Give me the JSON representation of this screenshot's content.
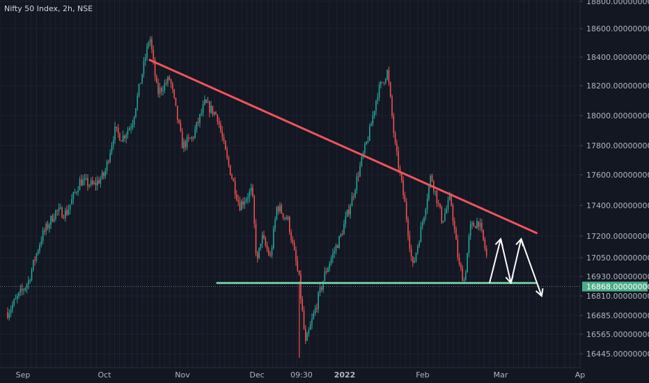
{
  "header": {
    "symbol_label": "Nifty 50 Index, 2h, NSE"
  },
  "colors": {
    "background": "#131722",
    "grid": "#1e2230",
    "up": "#26a69a",
    "down": "#ef5350",
    "axis_text": "#b2b5be",
    "resistance_line": "#f0545c",
    "support_line": "#70c7a0",
    "arrow": "#ffffff",
    "price_label_bg": "#4cae87"
  },
  "chart_data": {
    "type": "candlestick",
    "title": "Nifty 50 Index, 2h, NSE",
    "ylim": [
      16400,
      18800
    ],
    "y_axis_labels": [
      "18800.00000000",
      "18600.00000000",
      "18400.00000000",
      "18200.00000000",
      "18000.00000000",
      "17800.00000000",
      "17600.00000000",
      "17400.00000000",
      "17200.00000000",
      "17050.00000000",
      "16930.00000000",
      "16810.00000000",
      "16685.00000000",
      "16565.00000000",
      "16445.00000000"
    ],
    "x_axis_labels": [
      "Sep",
      "Oct",
      "Nov",
      "Dec",
      "09:30",
      "2022",
      "Feb",
      "Mar",
      "Ap"
    ],
    "current_price_label": "16868.00000000",
    "current_price": 16868,
    "grid": true,
    "price_path": [
      [
        "2021-08-30",
        16705
      ],
      [
        "2021-09-03",
        16900
      ],
      [
        "2021-09-08",
        17200
      ],
      [
        "2021-09-13",
        17360
      ],
      [
        "2021-09-17",
        17350
      ],
      [
        "2021-09-22",
        17560
      ],
      [
        "2021-09-27",
        17530
      ],
      [
        "2021-10-01",
        17600
      ],
      [
        "2021-10-05",
        17900
      ],
      [
        "2021-10-08",
        17850
      ],
      [
        "2021-10-12",
        17950
      ],
      [
        "2021-10-15",
        18200
      ],
      [
        "2021-10-19",
        18550
      ],
      [
        "2021-10-22",
        18150
      ],
      [
        "2021-10-27",
        18250
      ],
      [
        "2021-11-01",
        17800
      ],
      [
        "2021-11-05",
        17850
      ],
      [
        "2021-11-10",
        18080
      ],
      [
        "2021-11-15",
        18000
      ],
      [
        "2021-11-19",
        17700
      ],
      [
        "2021-11-24",
        17400
      ],
      [
        "2021-11-29",
        17500
      ],
      [
        "2021-12-01",
        17000
      ],
      [
        "2021-12-03",
        17200
      ],
      [
        "2021-12-07",
        17050
      ],
      [
        "2021-12-10",
        17400
      ],
      [
        "2021-12-15",
        17300
      ],
      [
        "2021-12-20",
        16900
      ],
      [
        "2021-12-22",
        16500
      ],
      [
        "2021-12-27",
        16950
      ],
      [
        "2021-12-31",
        17200
      ],
      [
        "2022-01-04",
        17450
      ],
      [
        "2022-01-07",
        17650
      ],
      [
        "2022-01-11",
        17900
      ],
      [
        "2022-01-14",
        18150
      ],
      [
        "2022-01-18",
        18300
      ],
      [
        "2022-01-21",
        17800
      ],
      [
        "2022-01-25",
        17400
      ],
      [
        "2022-01-28",
        16980
      ],
      [
        "2022-02-01",
        17300
      ],
      [
        "2022-02-04",
        17600
      ],
      [
        "2022-02-08",
        17300
      ],
      [
        "2022-02-11",
        17450
      ],
      [
        "2022-02-14",
        17000
      ],
      [
        "2022-02-16",
        16900
      ],
      [
        "2022-02-18",
        17250
      ],
      [
        "2022-02-21",
        17300
      ],
      [
        "2022-02-23",
        17150
      ],
      [
        "2022-02-24",
        17050
      ]
    ],
    "annotations": [
      {
        "type": "trendline",
        "name": "resistance",
        "from": [
          "2021-10-19",
          18380
        ],
        "to": [
          "2022-03-15",
          17220
        ]
      },
      {
        "type": "trendline",
        "name": "support",
        "from": [
          "2021-11-15",
          16890
        ],
        "to": [
          "2022-03-15",
          16890
        ]
      },
      {
        "type": "arrow-path",
        "points": [
          [
            "2022-02-25",
            16890
          ],
          [
            "2022-03-01",
            17180
          ],
          [
            "2022-03-05",
            16890
          ],
          [
            "2022-03-09",
            17180
          ],
          [
            "2022-03-17",
            16810
          ]
        ]
      }
    ]
  }
}
